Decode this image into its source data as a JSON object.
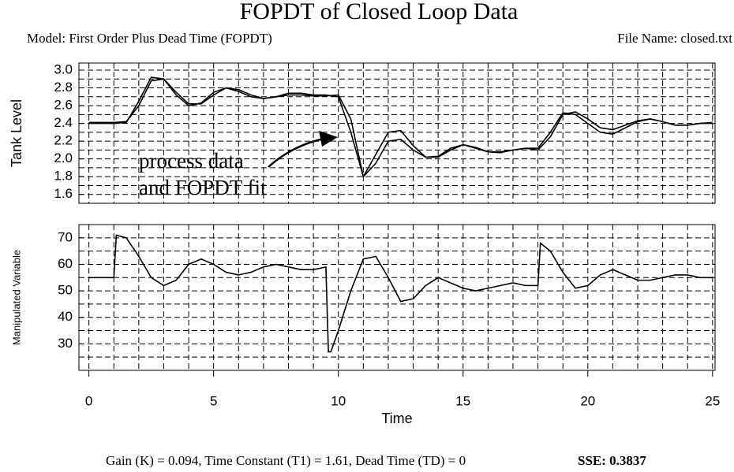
{
  "header": {
    "title": "FOPDT of Closed Loop Data",
    "model": "Model: First Order Plus Dead Time (FOPDT)",
    "file": "File Name: closed.txt"
  },
  "footer": {
    "params": "Gain (K) = 0.094, Time Constant (T1) = 1.61, Dead Time (TD) = 0",
    "sse": "SSE: 0.3837"
  },
  "chart_data": [
    {
      "type": "line",
      "ylabel": "Tank Level",
      "annotation": [
        "process data",
        "and FOPDT fit"
      ],
      "x": [
        0,
        0.5,
        1,
        1.5,
        2,
        2.5,
        3,
        3.5,
        4,
        4.5,
        5,
        5.5,
        6,
        6.5,
        7,
        7.5,
        8,
        8.5,
        9,
        9.5,
        10,
        10.5,
        11,
        11.5,
        12,
        12.5,
        13,
        13.5,
        14,
        14.5,
        15,
        15.5,
        16,
        16.5,
        17,
        17.5,
        18,
        18.5,
        19,
        19.5,
        20,
        20.5,
        21,
        21.5,
        22,
        22.5,
        23,
        23.5,
        24,
        24.5,
        25
      ],
      "series": [
        {
          "color": "#000000",
          "values": [
            2.41,
            2.41,
            2.41,
            2.42,
            2.6,
            2.88,
            2.9,
            2.75,
            2.62,
            2.62,
            2.72,
            2.8,
            2.78,
            2.72,
            2.68,
            2.7,
            2.74,
            2.74,
            2.72,
            2.72,
            2.7,
            2.3,
            1.8,
            2.05,
            2.3,
            2.32,
            2.15,
            2.02,
            2.02,
            2.1,
            2.16,
            2.13,
            2.08,
            2.07,
            2.1,
            2.12,
            2.1,
            2.25,
            2.5,
            2.53,
            2.45,
            2.35,
            2.33,
            2.38,
            2.43,
            2.45,
            2.42,
            2.38,
            2.38,
            2.4,
            2.41
          ]
        },
        {
          "color": "#000000",
          "values": [
            2.4,
            2.4,
            2.4,
            2.41,
            2.65,
            2.92,
            2.9,
            2.72,
            2.6,
            2.63,
            2.75,
            2.8,
            2.76,
            2.7,
            2.68,
            2.7,
            2.72,
            2.72,
            2.71,
            2.71,
            2.72,
            2.45,
            1.8,
            1.95,
            2.2,
            2.22,
            2.1,
            2.02,
            2.03,
            2.12,
            2.16,
            2.12,
            2.08,
            2.08,
            2.1,
            2.12,
            2.12,
            2.3,
            2.52,
            2.5,
            2.4,
            2.3,
            2.28,
            2.35,
            2.42,
            2.45,
            2.42,
            2.38,
            2.38,
            2.4,
            2.4
          ]
        }
      ],
      "xlim": [
        -0.4,
        25.1
      ],
      "ylim": [
        1.5,
        3.08
      ],
      "yticks": [
        1.6,
        1.8,
        {
          "value": 2,
          "label": "2.0"
        },
        2.2,
        2.4,
        2.6,
        2.8,
        {
          "value": 3,
          "label": "3.0"
        }
      ],
      "grid_step": {
        "x": 1,
        "y": 0.1
      }
    },
    {
      "type": "line",
      "ylabel": "Manipulated Variable",
      "xlabel": "Time",
      "x": [
        0,
        0.5,
        1,
        1.1,
        1.5,
        2,
        2.5,
        3,
        3.5,
        4,
        4.5,
        5,
        5.5,
        6,
        6.5,
        7,
        7.5,
        8,
        8.5,
        9,
        9.5,
        9.6,
        9.7,
        10,
        10.5,
        11,
        11.5,
        12,
        12.5,
        13,
        13.5,
        14,
        14.5,
        15,
        15.5,
        16,
        16.5,
        17,
        17.5,
        18,
        18.1,
        18.5,
        19,
        19.5,
        20,
        20.5,
        21,
        21.5,
        22,
        22.5,
        23,
        23.5,
        24,
        24.5,
        25
      ],
      "series": [
        {
          "color": "#000000",
          "values": [
            55,
            55,
            55,
            71,
            70,
            63,
            55,
            52,
            54,
            60,
            62,
            60,
            57,
            56,
            57,
            59,
            60,
            59,
            58,
            58,
            59,
            27,
            27,
            35,
            50,
            62,
            63,
            55,
            46,
            47,
            52,
            55,
            53,
            51,
            50,
            51,
            52,
            53,
            52,
            52,
            68,
            65,
            57,
            51,
            52,
            56,
            58,
            56,
            54,
            54,
            55,
            56,
            56,
            55,
            55
          ]
        }
      ],
      "xlim": [
        -0.4,
        25.1
      ],
      "ylim": [
        20,
        75
      ],
      "xticks": [
        0,
        5,
        10,
        15,
        20,
        25
      ],
      "yticks": [
        30,
        40,
        50,
        60,
        70
      ],
      "grid_step": {
        "x": 1,
        "y": 5
      }
    }
  ]
}
